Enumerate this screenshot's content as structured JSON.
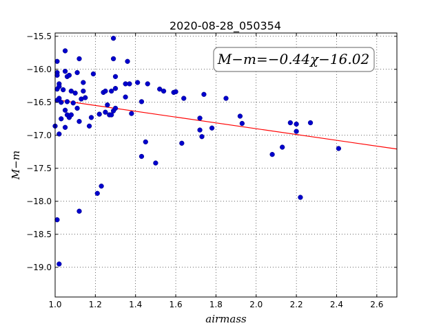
{
  "chart_data": {
    "type": "scatter",
    "title": "2020-08-28_050354",
    "xlabel": "airmass",
    "ylabel": "M−m",
    "xlim": [
      1.0,
      2.7
    ],
    "ylim": [
      -19.45,
      -15.45
    ],
    "y_inverted": true,
    "grid": true,
    "xticks": [
      "1.0",
      "1.2",
      "1.4",
      "1.6",
      "1.8",
      "2.0",
      "2.2",
      "2.4",
      "2.6"
    ],
    "yticks": [
      "−15.5",
      "−16.0",
      "−16.5",
      "−17.0",
      "−17.5",
      "−18.0",
      "−18.5",
      "−19.0"
    ],
    "annotation": "M−m=−0.44χ−16.02",
    "fit": {
      "slope": -0.44,
      "intercept": -16.02,
      "color": "#ff0000"
    },
    "point_color": "#0000cc",
    "points": [
      [
        1.0,
        -16.86
      ],
      [
        1.01,
        -16.05
      ],
      [
        1.01,
        -16.09
      ],
      [
        1.01,
        -16.3
      ],
      [
        1.01,
        -16.47
      ],
      [
        1.01,
        -15.88
      ],
      [
        1.01,
        -18.28
      ],
      [
        1.02,
        -18.95
      ],
      [
        1.02,
        -16.98
      ],
      [
        1.02,
        -16.22
      ],
      [
        1.02,
        -16.26
      ],
      [
        1.02,
        -16.44
      ],
      [
        1.03,
        -16.5
      ],
      [
        1.03,
        -16.75
      ],
      [
        1.04,
        -16.31
      ],
      [
        1.05,
        -16.88
      ],
      [
        1.05,
        -16.03
      ],
      [
        1.05,
        -15.72
      ],
      [
        1.05,
        -16.62
      ],
      [
        1.06,
        -16.11
      ],
      [
        1.06,
        -16.69
      ],
      [
        1.06,
        -16.49
      ],
      [
        1.07,
        -16.73
      ],
      [
        1.07,
        -16.09
      ],
      [
        1.08,
        -16.69
      ],
      [
        1.08,
        -16.33
      ],
      [
        1.09,
        -16.51
      ],
      [
        1.1,
        -16.36
      ],
      [
        1.11,
        -16.59
      ],
      [
        1.11,
        -16.05
      ],
      [
        1.12,
        -16.79
      ],
      [
        1.12,
        -18.15
      ],
      [
        1.12,
        -15.84
      ],
      [
        1.13,
        -16.45
      ],
      [
        1.14,
        -16.33
      ],
      [
        1.14,
        -16.2
      ],
      [
        1.15,
        -16.43
      ],
      [
        1.17,
        -16.86
      ],
      [
        1.18,
        -16.73
      ],
      [
        1.19,
        -16.07
      ],
      [
        1.21,
        -17.88
      ],
      [
        1.22,
        -16.68
      ],
      [
        1.23,
        -17.77
      ],
      [
        1.24,
        -16.35
      ],
      [
        1.25,
        -16.65
      ],
      [
        1.25,
        -16.33
      ],
      [
        1.26,
        -16.54
      ],
      [
        1.27,
        -16.69
      ],
      [
        1.28,
        -16.33
      ],
      [
        1.28,
        -16.69
      ],
      [
        1.29,
        -15.84
      ],
      [
        1.29,
        -16.63
      ],
      [
        1.29,
        -15.53
      ],
      [
        1.3,
        -16.59
      ],
      [
        1.3,
        -16.29
      ],
      [
        1.3,
        -16.11
      ],
      [
        1.35,
        -16.22
      ],
      [
        1.35,
        -16.42
      ],
      [
        1.36,
        -15.88
      ],
      [
        1.37,
        -16.22
      ],
      [
        1.38,
        -16.67
      ],
      [
        1.41,
        -16.2
      ],
      [
        1.43,
        -16.49
      ],
      [
        1.43,
        -17.32
      ],
      [
        1.45,
        -17.1
      ],
      [
        1.46,
        -16.22
      ],
      [
        1.5,
        -17.42
      ],
      [
        1.52,
        -16.3
      ],
      [
        1.54,
        -16.33
      ],
      [
        1.59,
        -16.35
      ],
      [
        1.6,
        -16.34
      ],
      [
        1.63,
        -17.12
      ],
      [
        1.64,
        -16.44
      ],
      [
        1.72,
        -16.92
      ],
      [
        1.72,
        -16.74
      ],
      [
        1.73,
        -17.02
      ],
      [
        1.74,
        -16.38
      ],
      [
        1.78,
        -16.89
      ],
      [
        1.85,
        -16.44
      ],
      [
        1.92,
        -16.71
      ],
      [
        1.93,
        -16.82
      ],
      [
        2.08,
        -17.29
      ],
      [
        2.13,
        -17.18
      ],
      [
        2.17,
        -16.81
      ],
      [
        2.2,
        -16.83
      ],
      [
        2.2,
        -16.94
      ],
      [
        2.22,
        -17.94
      ],
      [
        2.27,
        -16.81
      ],
      [
        2.41,
        -17.2
      ]
    ]
  }
}
